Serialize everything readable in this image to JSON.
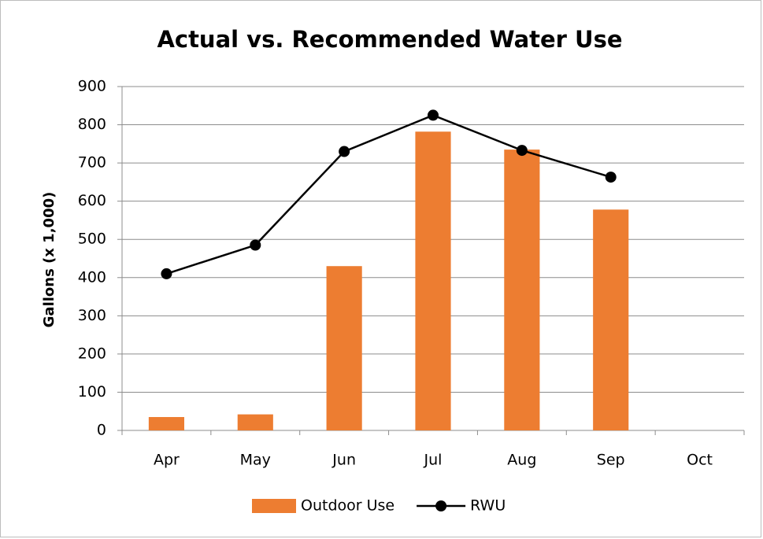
{
  "chart_data": {
    "type": "bar",
    "title": "Actual vs. Recommended Water Use",
    "ylabel": "Gallons (x 1,000)",
    "categories": [
      "Apr",
      "May",
      "Jun",
      "Jul",
      "Aug",
      "Sep",
      "Oct"
    ],
    "series": [
      {
        "name": "Outdoor Use",
        "type": "bar",
        "color": "#ed7d31",
        "values": [
          35,
          42,
          430,
          782,
          735,
          578,
          null
        ]
      },
      {
        "name": "RWU",
        "type": "line",
        "color": "#000000",
        "values": [
          410,
          485,
          730,
          825,
          733,
          663,
          null
        ]
      }
    ],
    "ylim": [
      0,
      900
    ],
    "yticks": [
      0,
      100,
      200,
      300,
      400,
      500,
      600,
      700,
      800,
      900
    ],
    "grid": true,
    "legend": "bottom"
  }
}
